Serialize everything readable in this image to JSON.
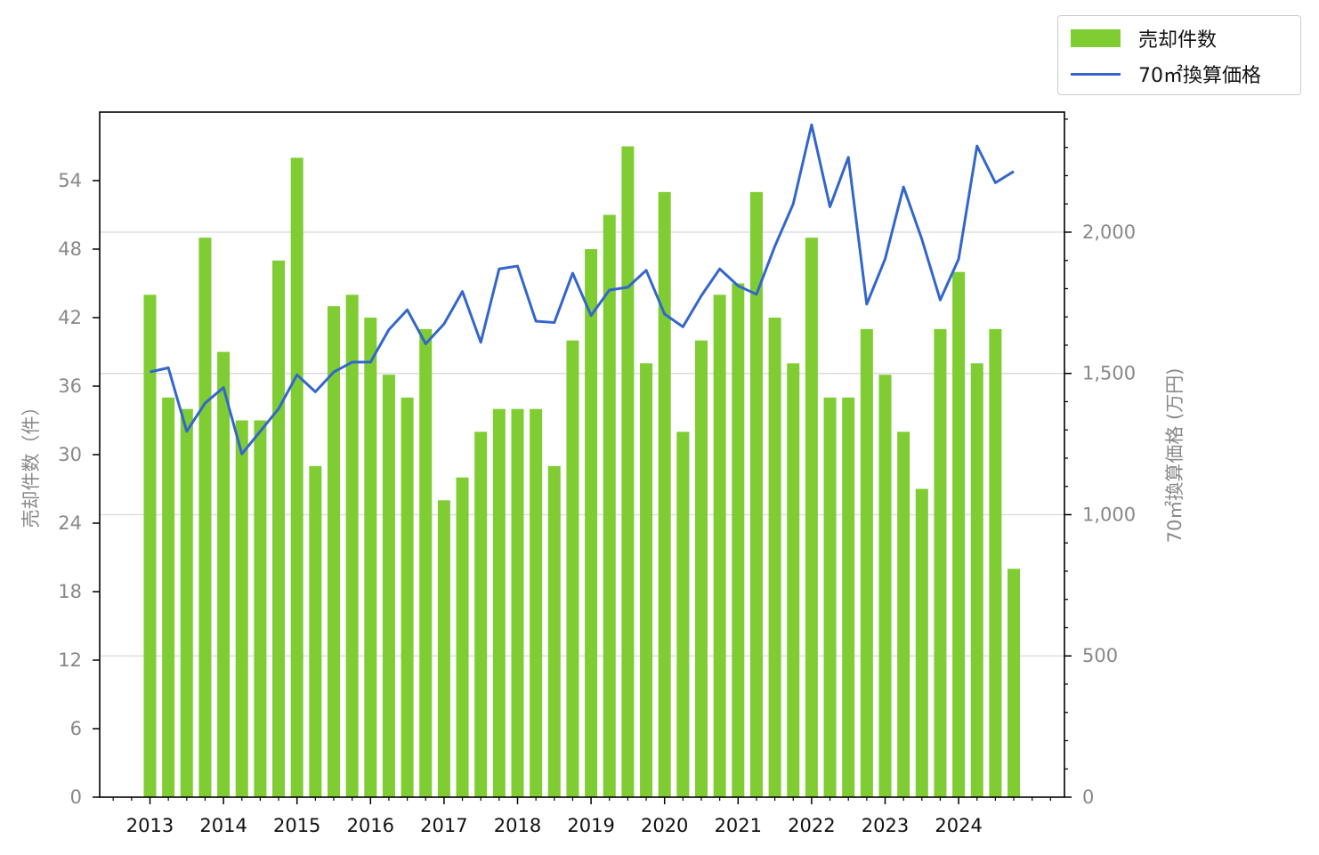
{
  "chart_data": {
    "type": "bar+line",
    "x_tick_labels": [
      "2013",
      "2014",
      "2015",
      "2016",
      "2017",
      "2018",
      "2019",
      "2020",
      "2021",
      "2022",
      "2023",
      "2024"
    ],
    "quarters_per_year": 4,
    "left_axis": {
      "label": "売却件数（件）",
      "ylim": [
        0,
        60
      ],
      "ticks": [
        0,
        6,
        12,
        18,
        24,
        30,
        36,
        42,
        48,
        54
      ]
    },
    "right_axis": {
      "label": "70㎡換算価格 (万円)",
      "ylim": [
        0,
        2425
      ],
      "ticks": [
        0,
        500,
        1000,
        1500,
        2000
      ],
      "tick_labels": [
        "0",
        "500",
        "1,000",
        "1,500",
        "2,000"
      ]
    },
    "series": [
      {
        "name": "売却件数",
        "type": "bar",
        "axis": "left",
        "color": "#7fcc33",
        "values": [
          44,
          35,
          34,
          49,
          39,
          33,
          33,
          47,
          56,
          29,
          43,
          44,
          42,
          37,
          35,
          41,
          26,
          28,
          32,
          34,
          34,
          34,
          29,
          40,
          48,
          51,
          57,
          38,
          53,
          32,
          40,
          44,
          45,
          53,
          42,
          38,
          49,
          35,
          35,
          41,
          37,
          32,
          27,
          41,
          46,
          38,
          41,
          20
        ]
      },
      {
        "name": "70㎡換算価格",
        "type": "line",
        "axis": "right",
        "color": "#3366cc",
        "values": [
          1505,
          1520,
          1295,
          1395,
          1450,
          1215,
          1295,
          1375,
          1495,
          1435,
          1505,
          1540,
          1540,
          1655,
          1725,
          1605,
          1675,
          1790,
          1610,
          1870,
          1880,
          1685,
          1680,
          1855,
          1705,
          1795,
          1805,
          1865,
          1710,
          1665,
          1775,
          1870,
          1810,
          1780,
          1950,
          2100,
          2380,
          2090,
          2265,
          1745,
          1905,
          2160,
          1975,
          1760,
          1905,
          2305,
          2175,
          2215
        ]
      }
    ],
    "legend_position": "top-right, outside plot",
    "grid": "horizontal, right axis"
  }
}
